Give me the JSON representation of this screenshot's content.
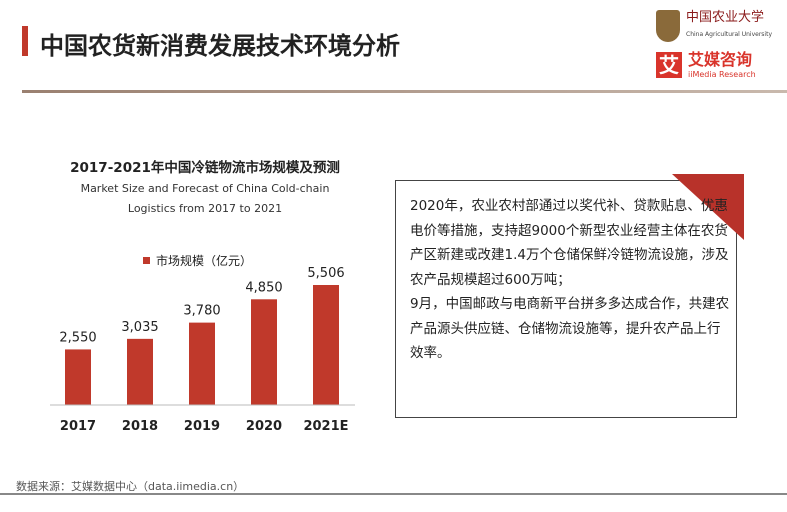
{
  "header": {
    "title": "中国农货新消费发展技术环境分析",
    "logo_university_cn": "中国农业大学",
    "logo_university_en": "China Agricultural University",
    "logo_brand_cn": "艾媒咨询",
    "logo_brand_en": "iiMedia Research",
    "accent_color": "#c0392b"
  },
  "chart_data": {
    "type": "bar",
    "title": "2017-2021年中国冷链物流市场规模及预测",
    "subtitle_line1": "Market Size and Forecast of China Cold-chain",
    "subtitle_line2": "Logistics from 2017 to 2021",
    "legend": "市场规模（亿元）",
    "categories": [
      "2017",
      "2018",
      "2019",
      "2020",
      "2021E"
    ],
    "values": [
      2550,
      3035,
      3780,
      4850,
      5506
    ],
    "value_labels": [
      "2,550",
      "3,035",
      "3,780",
      "4,850",
      "5,506"
    ],
    "ylim": [
      0,
      6000
    ],
    "bar_color": "#c0392b"
  },
  "textbox": {
    "paragraphs": [
      "2020年，农业农村部通过以奖代补、贷款贴息、优惠电价等措施，支持超9000个新型农业经营主体在农货产区新建或改建1.4万个仓储保鲜冷链物流设施，涉及农产品规模超过600万吨；",
      "9月，中国邮政与电商新平台拼多多达成合作，共建农产品源头供应链、仓储物流设施等，提升农产品上行效率。"
    ]
  },
  "footer": {
    "source": "数据来源：艾媒数据中心（data.iimedia.cn）"
  }
}
